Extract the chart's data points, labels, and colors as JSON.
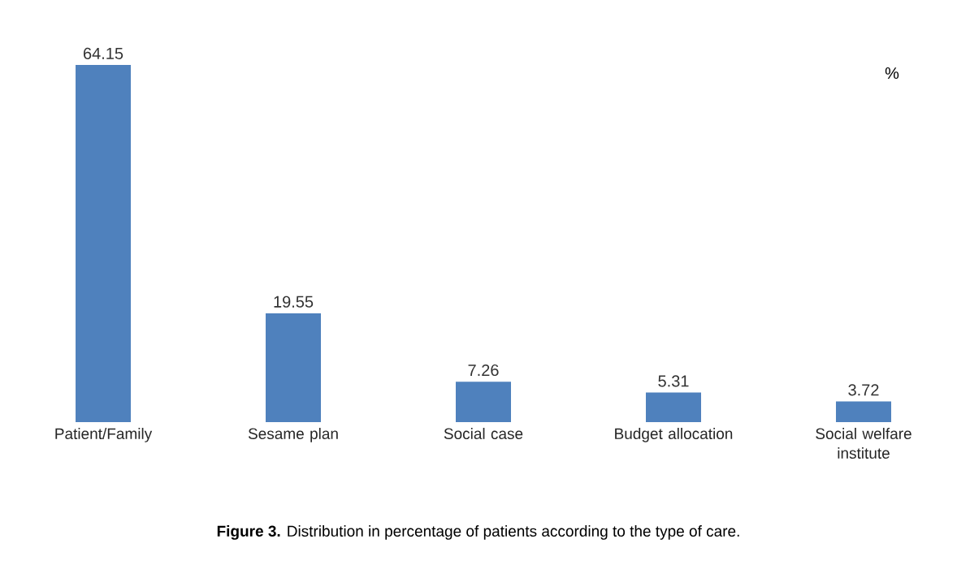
{
  "chart_data": {
    "type": "bar",
    "categories": [
      "Patient/Family",
      "Sesame plan",
      "Social case",
      "Budget allocation",
      "Social welfare institute"
    ],
    "values": [
      64.15,
      19.55,
      7.26,
      5.31,
      3.72
    ],
    "color": "#4f81bd",
    "data_labels": true,
    "annotations": [
      "%",
      "**Figure 3.** Distribution in percentage of patients according to the type of care."
    ]
  }
}
